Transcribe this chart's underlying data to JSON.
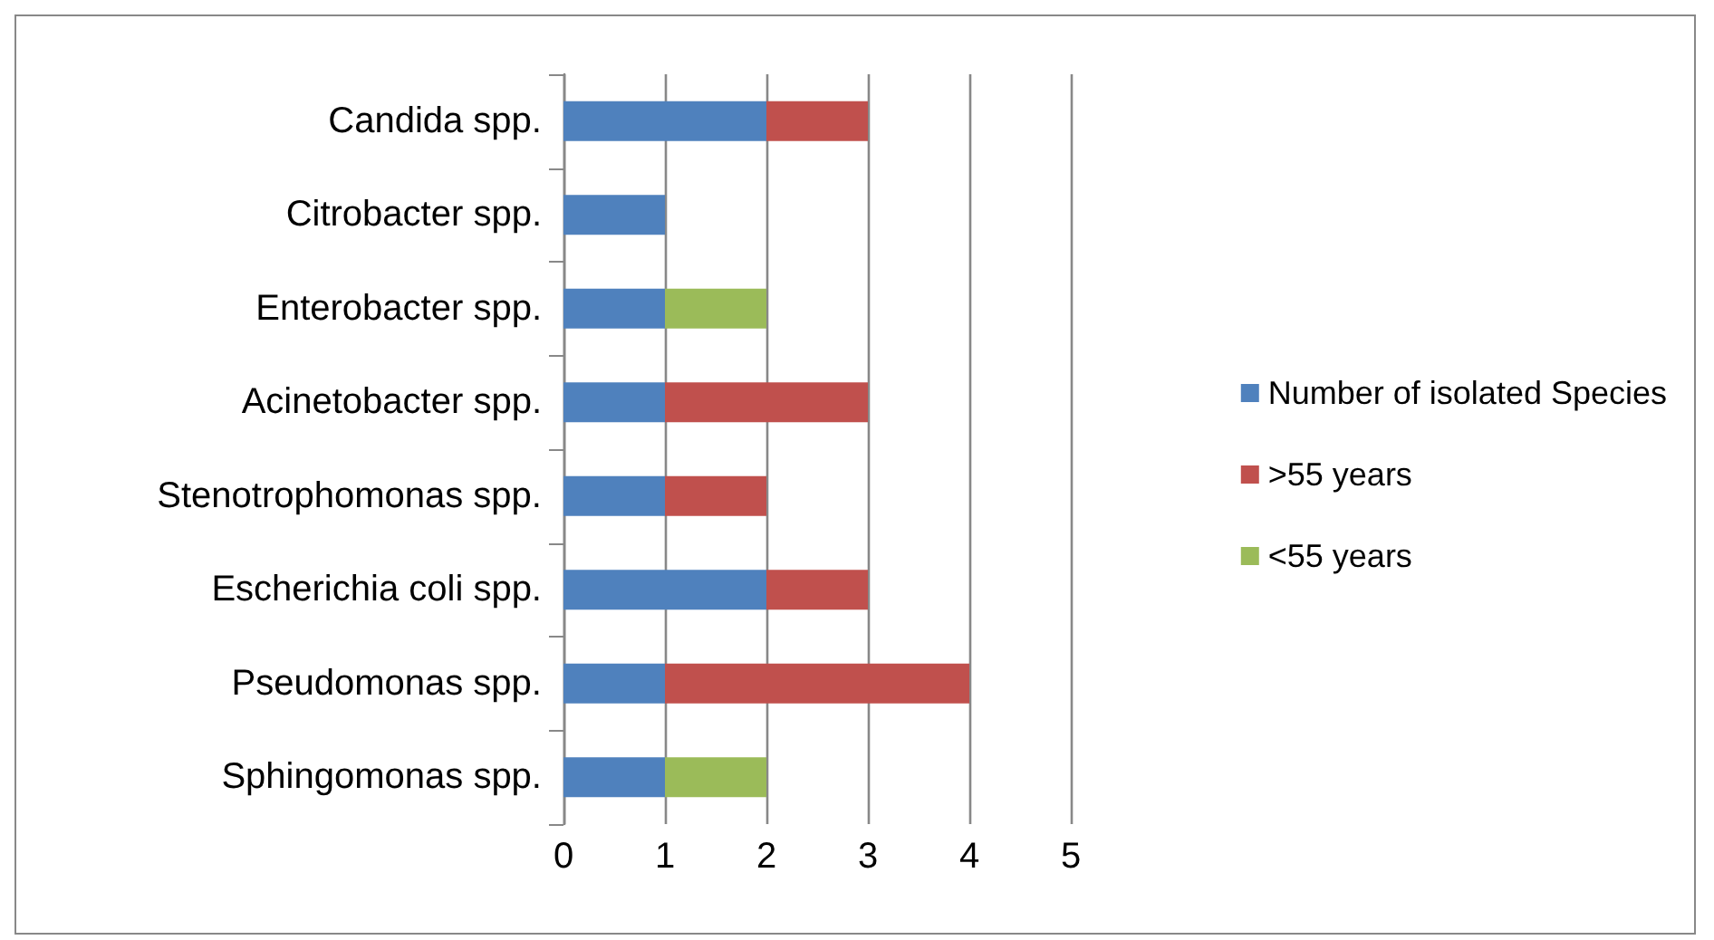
{
  "chart_data": {
    "type": "bar",
    "orientation": "horizontal",
    "stacked": true,
    "categories": [
      "Candida spp.",
      "Citrobacter spp.",
      "Enterobacter spp.",
      "Acinetobacter spp.",
      "Stenotrophomonas spp.",
      "Escherichia coli spp.",
      "Pseudomonas spp.",
      "Sphingomonas spp."
    ],
    "series": [
      {
        "name": "Number of isolated Species",
        "color": "#4f81bd",
        "values": [
          2,
          1,
          1,
          1,
          1,
          2,
          1,
          1
        ]
      },
      {
        "name": ">55 years",
        "color": "#c0504d",
        "values": [
          1,
          null,
          null,
          2,
          1,
          1,
          3,
          null
        ]
      },
      {
        "name": "<55 years",
        "color": "#9bbb59",
        "values": [
          null,
          null,
          1,
          null,
          null,
          null,
          null,
          1
        ]
      }
    ],
    "xlim": [
      0,
      5
    ],
    "xticks": [
      0,
      1,
      2,
      3,
      4,
      5
    ],
    "grid": "x",
    "legend": "right"
  }
}
